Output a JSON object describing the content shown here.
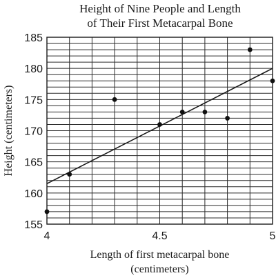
{
  "chart_data": {
    "type": "scatter",
    "title_lines": [
      "Height of Nine People and Length",
      "of Their First Metacarpal Bone"
    ],
    "xlabel_lines": [
      "Length of first metacarpal bone",
      "(centimeters)"
    ],
    "ylabel": "Height (centimeters)",
    "xlim": [
      4,
      5
    ],
    "ylim": [
      155,
      185
    ],
    "x_ticks": [
      4,
      4.5,
      5
    ],
    "x_tick_labels": [
      "4",
      "4.5",
      "5"
    ],
    "x_grid_step": 0.1,
    "y_ticks": [
      155,
      160,
      165,
      170,
      175,
      180,
      185
    ],
    "y_tick_labels": [
      "155",
      "160",
      "165",
      "170",
      "175",
      "180",
      "185"
    ],
    "y_grid_step": 1,
    "grid": true,
    "points": [
      {
        "x": 4.0,
        "y": 157
      },
      {
        "x": 4.1,
        "y": 163
      },
      {
        "x": 4.3,
        "y": 175
      },
      {
        "x": 4.5,
        "y": 171
      },
      {
        "x": 4.6,
        "y": 173
      },
      {
        "x": 4.7,
        "y": 173
      },
      {
        "x": 4.8,
        "y": 172
      },
      {
        "x": 4.9,
        "y": 183
      },
      {
        "x": 5.0,
        "y": 178
      }
    ],
    "fit_line": {
      "start": {
        "x": 4.0,
        "y": 161.5
      },
      "end": {
        "x": 5.0,
        "y": 180
      }
    }
  }
}
